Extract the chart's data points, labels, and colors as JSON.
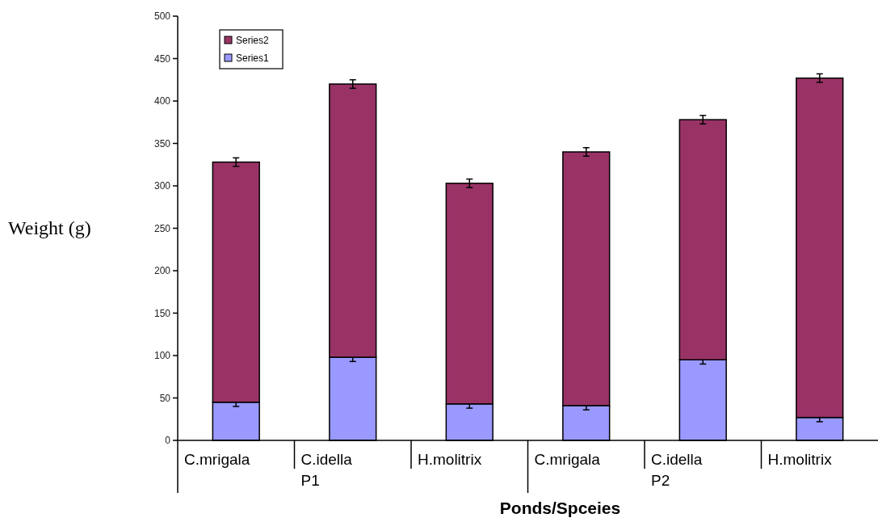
{
  "chart_data": {
    "type": "bar",
    "stacked": true,
    "xlabel": "Ponds/Spceies",
    "ylabel": "Weight (g)",
    "categories": [
      "C.mrigala",
      "C.idella P1",
      "H.molitrix",
      "C.mrigala",
      "C.idella P2",
      "H.molitrix"
    ],
    "series": [
      {
        "name": "Series1",
        "color": "#9999ff",
        "values": [
          45,
          98,
          43,
          41,
          95,
          27
        ],
        "errors": [
          5,
          5,
          5,
          5,
          5,
          5
        ]
      },
      {
        "name": "Series2",
        "color": "#993366",
        "values": [
          283,
          322,
          260,
          299,
          283,
          400
        ],
        "errors": [
          5,
          5,
          5,
          5,
          5,
          5
        ]
      }
    ],
    "ylim": [
      0,
      500
    ],
    "yticks": [
      0,
      50,
      100,
      150,
      200,
      250,
      300,
      350,
      400,
      450,
      500
    ],
    "grid": false,
    "legend": "top left"
  }
}
